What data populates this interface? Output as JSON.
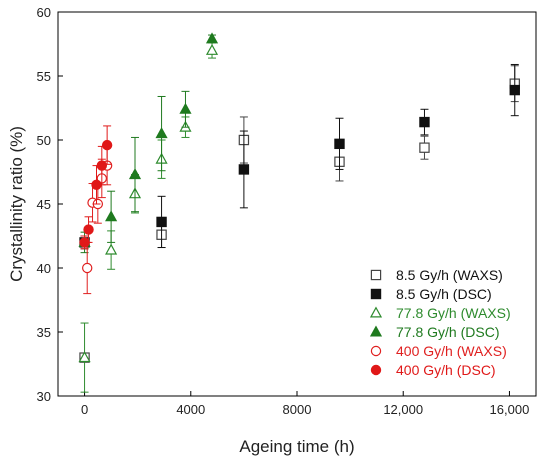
{
  "chart_data": {
    "type": "scatter",
    "title": "",
    "xlabel": "Ageing time (h)",
    "ylabel": "Crystallinity ratio (%)",
    "xlim": [
      -1000,
      17000
    ],
    "ylim": [
      30,
      60
    ],
    "xticks": [
      0,
      4000,
      8000,
      12000,
      16000
    ],
    "xtick_labels": [
      "0",
      "4000",
      "8000",
      "12,000",
      "16,000"
    ],
    "yticks": [
      30,
      35,
      40,
      45,
      50,
      55,
      60
    ],
    "ytick_labels": [
      "30",
      "35",
      "40",
      "45",
      "50",
      "55",
      "60"
    ],
    "grid": false,
    "legend_position": "bottom-right",
    "series": [
      {
        "name": "8.5 Gy/h (WAXS)",
        "marker": "square",
        "filled": false,
        "color": "#444444",
        "points": [
          {
            "x": 0,
            "y": 33.0,
            "err": 0
          },
          {
            "x": 2900,
            "y": 42.6,
            "err": 1.0
          },
          {
            "x": 6000,
            "y": 50.0,
            "err": 1.8
          },
          {
            "x": 9600,
            "y": 48.3,
            "err": 1.5
          },
          {
            "x": 12800,
            "y": 49.4,
            "err": 0.9
          },
          {
            "x": 16200,
            "y": 54.4,
            "err": 1.4
          }
        ]
      },
      {
        "name": "8.5 Gy/h (DSC)",
        "marker": "square",
        "filled": true,
        "color": "#111111",
        "points": [
          {
            "x": 0,
            "y": 42.0,
            "err": 0.5
          },
          {
            "x": 2900,
            "y": 43.6,
            "err": 2.0
          },
          {
            "x": 6000,
            "y": 47.7,
            "err": 3.0
          },
          {
            "x": 9600,
            "y": 49.7,
            "err": 2.0
          },
          {
            "x": 12800,
            "y": 51.4,
            "err": 1.0
          },
          {
            "x": 16200,
            "y": 53.9,
            "err": 2.0
          }
        ]
      },
      {
        "name": "77.8 Gy/h (WAXS)",
        "marker": "triangle",
        "filled": false,
        "color": "#2e8b2e",
        "points": [
          {
            "x": 0,
            "y": 33.0,
            "err": 2.7
          },
          {
            "x": 1000,
            "y": 41.4,
            "err": 1.5
          },
          {
            "x": 1900,
            "y": 45.8,
            "err": 1.5
          },
          {
            "x": 2900,
            "y": 48.5,
            "err": 1.5
          },
          {
            "x": 3800,
            "y": 51.0,
            "err": 0.8
          },
          {
            "x": 4800,
            "y": 57.0,
            "err": 0.6
          }
        ]
      },
      {
        "name": "77.8 Gy/h (DSC)",
        "marker": "triangle",
        "filled": true,
        "color": "#1f7a1f",
        "points": [
          {
            "x": 0,
            "y": 42.0,
            "err": 0.8
          },
          {
            "x": 1000,
            "y": 44.0,
            "err": 2.0
          },
          {
            "x": 1900,
            "y": 47.3,
            "err": 2.9
          },
          {
            "x": 2900,
            "y": 50.5,
            "err": 2.9
          },
          {
            "x": 3800,
            "y": 52.4,
            "err": 1.4
          },
          {
            "x": 4800,
            "y": 57.9,
            "err": 0.3
          }
        ]
      },
      {
        "name": "400 Gy/h (WAXS)",
        "marker": "circle",
        "filled": false,
        "color": "#e02020",
        "points": [
          {
            "x": 100,
            "y": 40.0,
            "err": 2.0
          },
          {
            "x": 300,
            "y": 45.1,
            "err": 1.5
          },
          {
            "x": 500,
            "y": 45.0,
            "err": 1.5
          },
          {
            "x": 650,
            "y": 47.0,
            "err": 1.5
          },
          {
            "x": 850,
            "y": 48.0,
            "err": 1.5
          }
        ]
      },
      {
        "name": "400 Gy/h (DSC)",
        "marker": "circle",
        "filled": true,
        "color": "#e01818",
        "points": [
          {
            "x": 0,
            "y": 42.0,
            "err": 0.5
          },
          {
            "x": 150,
            "y": 43.0,
            "err": 1.0
          },
          {
            "x": 450,
            "y": 46.5,
            "err": 1.5
          },
          {
            "x": 650,
            "y": 48.0,
            "err": 1.5
          },
          {
            "x": 850,
            "y": 49.6,
            "err": 1.5
          }
        ]
      }
    ]
  }
}
